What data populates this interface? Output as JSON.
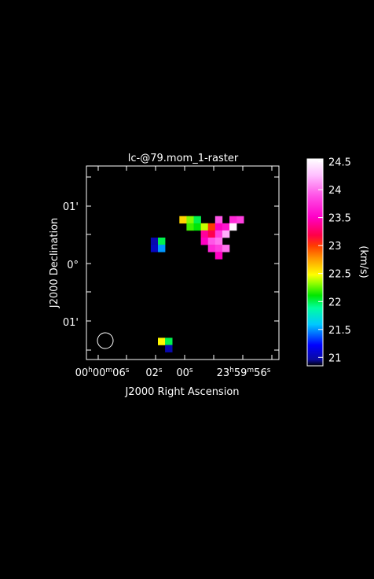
{
  "chart_data": {
    "type": "heatmap",
    "title": "lc-@79.mom_1-raster",
    "xlabel": "J2000 Right Ascension",
    "ylabel": "J2000 Declination",
    "x_ticks": [
      {
        "h": "00",
        "m": "00",
        "s": "06"
      },
      {
        "h": "",
        "m": "",
        "s": "02"
      },
      {
        "h": "",
        "m": "",
        "s": "00"
      },
      {
        "h": "23",
        "m": "59",
        "s": "56"
      }
    ],
    "y_ticks": [
      "01'",
      "0°",
      "01'"
    ],
    "colorbar": {
      "label": "(km/s)",
      "range": [
        20.85,
        24.55
      ],
      "ticks": [
        "24.5",
        "24",
        "23.5",
        "23",
        "22.5",
        "22",
        "21.5",
        "21"
      ],
      "tick_values": [
        24.5,
        24,
        23.5,
        23,
        22.5,
        22,
        21.5,
        21
      ]
    },
    "pixels": [
      {
        "col": 13,
        "row": 7,
        "v": 22.6
      },
      {
        "col": 14,
        "row": 7,
        "v": 22.3
      },
      {
        "col": 15,
        "row": 7,
        "v": 22.0
      },
      {
        "col": 18,
        "row": 7,
        "v": 23.9
      },
      {
        "col": 20,
        "row": 7,
        "v": 23.7
      },
      {
        "col": 21,
        "row": 7,
        "v": 23.8
      },
      {
        "col": 14,
        "row": 8,
        "v": 22.2
      },
      {
        "col": 15,
        "row": 8,
        "v": 22.1
      },
      {
        "col": 16,
        "row": 8,
        "v": 22.4
      },
      {
        "col": 17,
        "row": 8,
        "v": 23.0
      },
      {
        "col": 18,
        "row": 8,
        "v": 23.5
      },
      {
        "col": 19,
        "row": 8,
        "v": 23.6
      },
      {
        "col": 20,
        "row": 8,
        "v": 24.5
      },
      {
        "col": 16,
        "row": 9,
        "v": 23.4
      },
      {
        "col": 17,
        "row": 9,
        "v": 23.2
      },
      {
        "col": 18,
        "row": 9,
        "v": 23.8
      },
      {
        "col": 19,
        "row": 9,
        "v": 24.2
      },
      {
        "col": 9,
        "row": 10,
        "v": 21.0
      },
      {
        "col": 10,
        "row": 10,
        "v": 22.0
      },
      {
        "col": 16,
        "row": 10,
        "v": 23.5
      },
      {
        "col": 17,
        "row": 10,
        "v": 23.9
      },
      {
        "col": 18,
        "row": 10,
        "v": 24.0
      },
      {
        "col": 9,
        "row": 11,
        "v": 21.05
      },
      {
        "col": 10,
        "row": 11,
        "v": 21.5
      },
      {
        "col": 17,
        "row": 11,
        "v": 23.7
      },
      {
        "col": 18,
        "row": 11,
        "v": 23.8
      },
      {
        "col": 19,
        "row": 11,
        "v": 24.0
      },
      {
        "col": 18,
        "row": 12,
        "v": 23.5
      },
      {
        "col": 10,
        "row": 24,
        "v": 22.5
      },
      {
        "col": 11,
        "row": 24,
        "v": 22.0
      },
      {
        "col": 11,
        "row": 25,
        "v": 21.0
      }
    ]
  }
}
